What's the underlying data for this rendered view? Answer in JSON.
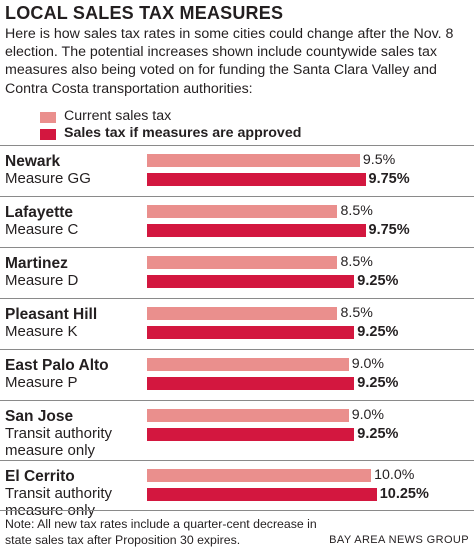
{
  "title": "LOCAL SALES TAX MEASURES",
  "subtitle": "Here is how sales tax rates in some cities could change after the Nov. 8 election. The potential increases shown include countywide sales tax measures also being voted on for funding the Santa Clara Valley and Contra Costa transportation authorities:",
  "colors": {
    "current": "#ea8f8d",
    "proposed": "#d3173f",
    "separator": "#8a8a8a",
    "text": "#231f20"
  },
  "legend": {
    "current_label": "Current sales tax",
    "proposed_label": "Sales tax if measures are approved"
  },
  "chart_data": {
    "type": "bar",
    "orientation": "horizontal",
    "xlim": [
      0,
      10.5
    ],
    "grid": false,
    "legend_position": "top",
    "categories": [
      {
        "city": "Newark",
        "measure": "Measure GG"
      },
      {
        "city": "Lafayette",
        "measure": "Measure C"
      },
      {
        "city": "Martinez",
        "measure": "Measure D"
      },
      {
        "city": "Pleasant Hill",
        "measure": "Measure K"
      },
      {
        "city": "East Palo Alto",
        "measure": "Measure P"
      },
      {
        "city": "San Jose",
        "measure": "Transit authority measure only"
      },
      {
        "city": "El Cerrito",
        "measure": "Transit authority measure only"
      }
    ],
    "series": [
      {
        "name": "Current sales tax",
        "values": [
          9.5,
          8.5,
          8.5,
          8.5,
          9.0,
          9.0,
          10.0
        ],
        "labels": [
          "9.5%",
          "8.5%",
          "8.5%",
          "8.5%",
          "9.0%",
          "9.0%",
          "10.0%"
        ]
      },
      {
        "name": "Sales tax if measures are approved",
        "values": [
          9.75,
          9.75,
          9.25,
          9.25,
          9.25,
          9.25,
          10.25
        ],
        "labels": [
          "9.75%",
          "9.75%",
          "9.25%",
          "9.25%",
          "9.25%",
          "9.25%",
          "10.25%"
        ]
      }
    ]
  },
  "footer": {
    "note": "Note: All new tax rates include a quarter-cent decrease in state sales tax after Proposition 30 expires.",
    "credit": "BAY AREA NEWS GROUP"
  }
}
